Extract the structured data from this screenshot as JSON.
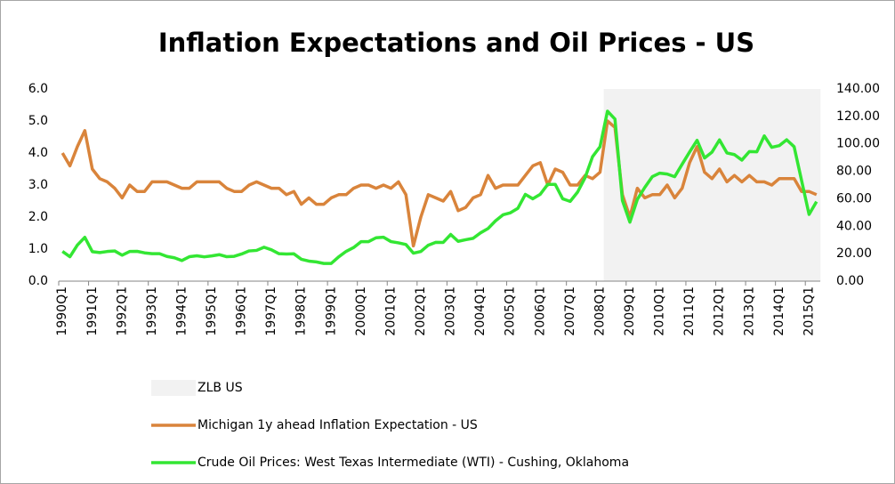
{
  "chart_data": {
    "type": "line",
    "title": "Inflation Expectations and Oil Prices - US",
    "categories": [
      "1990Q1",
      null,
      null,
      null,
      "1991Q1",
      null,
      null,
      null,
      "1992Q1",
      null,
      null,
      null,
      "1993Q1",
      null,
      null,
      null,
      "1994Q1",
      null,
      null,
      null,
      "1995Q1",
      null,
      null,
      null,
      "1996Q1",
      null,
      null,
      null,
      "1997Q1",
      null,
      null,
      null,
      "1998Q1",
      null,
      null,
      null,
      "1999Q1",
      null,
      null,
      null,
      "2000Q1",
      null,
      null,
      null,
      "2001Q1",
      null,
      null,
      null,
      "2002Q1",
      null,
      null,
      null,
      "2003Q1",
      null,
      null,
      null,
      "2004Q1",
      null,
      null,
      null,
      "2005Q1",
      null,
      null,
      null,
      "2006Q1",
      null,
      null,
      null,
      "2007Q1",
      null,
      null,
      null,
      "2008Q1",
      null,
      null,
      null,
      "2009Q1",
      null,
      null,
      null,
      "2010Q1",
      null,
      null,
      null,
      "2011Q1",
      null,
      null,
      null,
      "2012Q1",
      null,
      null,
      null,
      "2013Q1",
      null,
      null,
      null,
      "2014Q1",
      null,
      null,
      null,
      "2015Q1",
      null
    ],
    "series": [
      {
        "name": "ZLB US",
        "type": "bar",
        "color": "#f2f2f2",
        "values": [
          0,
          0,
          0,
          0,
          0,
          0,
          0,
          0,
          0,
          0,
          0,
          0,
          0,
          0,
          0,
          0,
          0,
          0,
          0,
          0,
          0,
          0,
          0,
          0,
          0,
          0,
          0,
          0,
          0,
          0,
          0,
          0,
          0,
          0,
          0,
          0,
          0,
          0,
          0,
          0,
          0,
          0,
          0,
          0,
          0,
          0,
          0,
          0,
          0,
          0,
          0,
          0,
          0,
          0,
          0,
          0,
          0,
          0,
          0,
          0,
          0,
          0,
          0,
          0,
          0,
          0,
          0,
          0,
          0,
          0,
          0,
          0,
          0,
          6,
          6,
          6,
          6,
          6,
          6,
          6,
          6,
          6,
          6,
          6,
          6,
          6,
          6,
          6,
          6,
          6,
          6,
          6,
          6,
          6,
          6,
          6,
          6,
          6,
          6,
          6,
          6,
          6
        ]
      },
      {
        "name": "Michigan 1y ahead Inflation Expectation - US",
        "type": "line",
        "color": "#d9843b",
        "values": [
          4.0,
          3.6,
          4.2,
          4.7,
          3.5,
          3.2,
          3.1,
          2.9,
          2.6,
          3.0,
          2.8,
          2.8,
          3.1,
          3.1,
          3.1,
          3.0,
          2.9,
          2.9,
          3.1,
          3.1,
          3.1,
          3.1,
          2.9,
          2.8,
          2.8,
          3.0,
          3.1,
          3.0,
          2.9,
          2.9,
          2.7,
          2.8,
          2.4,
          2.6,
          2.4,
          2.4,
          2.6,
          2.7,
          2.7,
          2.9,
          3.0,
          3.0,
          2.9,
          3.0,
          2.9,
          3.1,
          2.7,
          1.1,
          2.0,
          2.7,
          2.6,
          2.5,
          2.8,
          2.2,
          2.3,
          2.6,
          2.7,
          3.3,
          2.9,
          3.0,
          3.0,
          3.0,
          3.3,
          3.6,
          3.7,
          3.0,
          3.5,
          3.4,
          3.0,
          3.0,
          3.3,
          3.2,
          3.4,
          5.0,
          4.8,
          2.7,
          2.0,
          2.9,
          2.6,
          2.7,
          2.7,
          3.0,
          2.6,
          2.9,
          3.7,
          4.2,
          3.4,
          3.2,
          3.5,
          3.1,
          3.3,
          3.1,
          3.3,
          3.1,
          3.1,
          3.0,
          3.2,
          3.2,
          3.2,
          2.8,
          2.8,
          2.7
        ]
      },
      {
        "name": "Crude Oil Prices: West Texas Intermediate (WTI) - Cushing, Oklahoma",
        "type": "line",
        "axis": "y2",
        "color": "#33e633",
        "values": [
          21.7,
          17.8,
          26.3,
          31.9,
          21.5,
          20.8,
          21.6,
          22.0,
          18.9,
          21.6,
          21.7,
          20.6,
          20.0,
          20.0,
          18.0,
          17.0,
          15.0,
          17.8,
          18.5,
          17.7,
          18.4,
          19.3,
          17.8,
          18.1,
          19.8,
          22.0,
          22.4,
          24.7,
          22.8,
          20.0,
          19.8,
          19.9,
          15.9,
          14.6,
          14.0,
          12.9,
          12.9,
          17.7,
          21.7,
          24.5,
          28.8,
          28.8,
          31.6,
          32.0,
          28.8,
          27.9,
          26.7,
          20.4,
          21.6,
          26.2,
          28.3,
          28.2,
          34.0,
          29.0,
          30.2,
          31.2,
          35.2,
          38.3,
          43.9,
          48.3,
          49.8,
          53.1,
          63.2,
          60.0,
          63.3,
          70.5,
          70.5,
          60.0,
          58.1,
          64.9,
          75.4,
          90.7,
          97.9,
          123.8,
          118.1,
          58.7,
          43.0,
          59.6,
          68.3,
          76.1,
          78.7,
          78.0,
          76.1,
          85.2,
          94.1,
          102.6,
          89.7,
          94.0,
          102.9,
          93.4,
          92.2,
          88.2,
          94.4,
          94.2,
          105.8,
          97.5,
          98.7,
          103.0,
          97.9,
          73.2,
          48.6,
          57.9
        ]
      }
    ],
    "ylim": [
      0,
      6
    ],
    "yticks": [
      {
        "value": 0,
        "label": "0.0"
      },
      {
        "value": 1,
        "label": "1.0"
      },
      {
        "value": 2,
        "label": "2.0"
      },
      {
        "value": 3,
        "label": "3.0"
      },
      {
        "value": 4,
        "label": "4.0"
      },
      {
        "value": 5,
        "label": "5.0"
      },
      {
        "value": 6,
        "label": "6.0"
      }
    ],
    "y2lim": [
      0,
      140
    ],
    "y2ticks": [
      {
        "value": 0,
        "label": "0.00"
      },
      {
        "value": 20,
        "label": "20.00"
      },
      {
        "value": 40,
        "label": "40.00"
      },
      {
        "value": 60,
        "label": "60.00"
      },
      {
        "value": 80,
        "label": "80.00"
      },
      {
        "value": 100,
        "label": "100.00"
      },
      {
        "value": 120,
        "label": "120.00"
      },
      {
        "value": 140,
        "label": "140.00"
      }
    ],
    "grid": false,
    "legend": "bottom"
  }
}
